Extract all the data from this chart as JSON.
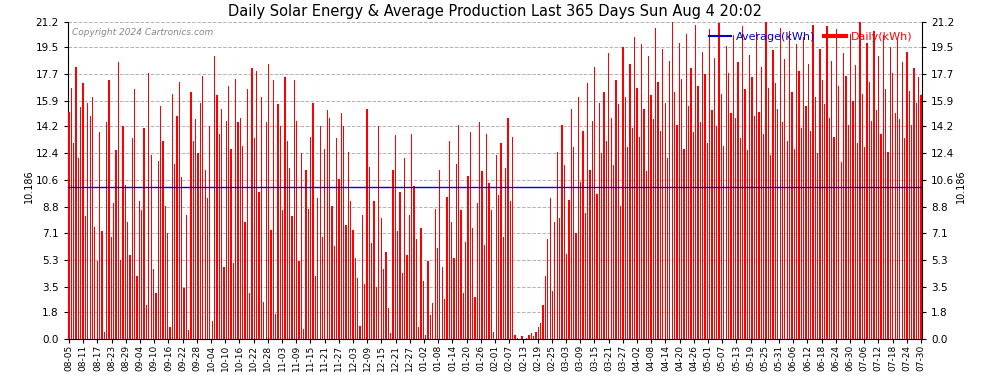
{
  "title": "Daily Solar Energy & Average Production Last 365 Days Sun Aug 4 20:02",
  "copyright": "Copyright 2024 Cartronics.com",
  "average_value": 10.186,
  "average_label": "10.186",
  "yticks": [
    0.0,
    1.8,
    3.5,
    5.3,
    7.1,
    8.8,
    10.6,
    12.4,
    14.2,
    15.9,
    17.7,
    19.5,
    21.2
  ],
  "ylim": [
    0.0,
    21.2
  ],
  "bar_color": "#ff0000",
  "average_line_color": "#0000cc",
  "grid_color": "#aaaaaa",
  "background_color": "#ffffff",
  "title_color": "#000000",
  "copyright_color": "#888888",
  "legend_avg_color": "#0000cc",
  "legend_daily_color": "#ff0000",
  "bar_width": 0.55,
  "xtick_labels": [
    "08-05",
    "08-11",
    "08-17",
    "08-23",
    "08-29",
    "09-04",
    "09-10",
    "09-16",
    "09-22",
    "09-28",
    "10-04",
    "10-10",
    "10-16",
    "10-22",
    "10-28",
    "11-03",
    "11-09",
    "11-15",
    "11-21",
    "11-27",
    "12-03",
    "12-09",
    "12-15",
    "12-21",
    "12-27",
    "01-02",
    "01-08",
    "01-14",
    "01-20",
    "01-26",
    "02-01",
    "02-07",
    "02-13",
    "02-19",
    "02-25",
    "03-03",
    "03-09",
    "03-15",
    "03-21",
    "03-27",
    "04-02",
    "04-08",
    "04-14",
    "04-20",
    "04-26",
    "05-01",
    "05-07",
    "05-13",
    "05-19",
    "05-25",
    "05-31",
    "06-06",
    "06-12",
    "06-18",
    "06-24",
    "06-30",
    "07-06",
    "07-12",
    "07-18",
    "07-24",
    "07-30"
  ],
  "values": [
    15.2,
    16.8,
    13.1,
    18.2,
    12.1,
    15.5,
    17.1,
    8.2,
    15.8,
    14.9,
    16.2,
    7.5,
    5.2,
    13.8,
    7.2,
    0.5,
    14.5,
    17.3,
    6.8,
    9.1,
    12.6,
    18.5,
    5.3,
    14.2,
    10.3,
    7.8,
    5.6,
    13.4,
    16.7,
    4.2,
    9.2,
    8.6,
    14.1,
    2.3,
    17.8,
    12.3,
    4.7,
    3.1,
    11.9,
    15.6,
    13.2,
    8.9,
    7.1,
    0.8,
    16.4,
    11.7,
    14.9,
    17.2,
    10.8,
    3.4,
    8.3,
    0.6,
    16.5,
    13.2,
    14.7,
    12.4,
    15.8,
    17.6,
    11.3,
    9.4,
    14.2,
    1.2,
    18.9,
    16.3,
    13.7,
    15.4,
    4.8,
    14.6,
    16.9,
    12.7,
    5.1,
    17.4,
    14.5,
    14.8,
    12.9,
    7.8,
    16.7,
    3.1,
    18.1,
    13.4,
    17.9,
    9.8,
    16.2,
    2.5,
    14.5,
    18.4,
    7.3,
    17.3,
    1.7,
    15.7,
    14.2,
    8.6,
    17.5,
    13.2,
    11.4,
    8.2,
    17.3,
    14.6,
    5.2,
    12.4,
    0.7,
    11.3,
    8.7,
    13.5,
    15.8,
    4.2,
    9.4,
    14.2,
    6.8,
    12.7,
    15.3,
    14.8,
    8.9,
    6.2,
    13.4,
    10.7,
    15.1,
    14.2,
    7.6,
    12.5,
    9.2,
    7.3,
    5.4,
    4.1,
    0.9,
    8.3,
    3.7,
    15.4,
    11.5,
    6.4,
    9.2,
    3.5,
    14.2,
    8.1,
    4.7,
    5.8,
    2.1,
    0.4,
    11.3,
    13.6,
    7.2,
    9.8,
    4.4,
    12.1,
    5.6,
    8.3,
    13.7,
    10.2,
    6.7,
    0.8,
    7.4,
    3.9,
    0.3,
    5.2,
    1.6,
    2.4,
    8.7,
    6.1,
    11.3,
    4.8,
    2.7,
    9.5,
    13.2,
    7.8,
    5.4,
    11.7,
    14.3,
    8.6,
    3.1,
    6.5,
    10.9,
    13.8,
    7.4,
    2.8,
    9.1,
    14.5,
    11.2,
    6.3,
    13.7,
    10.4,
    8.6,
    0.5,
    12.3,
    9.6,
    13.1,
    6.8,
    11.4,
    14.8,
    9.2,
    13.5,
    0.3,
    0.1,
    0.0,
    0.2,
    0.0,
    0.1,
    0.3,
    0.4,
    0.2,
    0.5,
    0.8,
    1.1,
    2.3,
    4.2,
    6.7,
    9.4,
    3.2,
    7.8,
    12.5,
    8.1,
    14.3,
    11.6,
    5.7,
    9.3,
    15.4,
    12.8,
    7.1,
    16.2,
    10.5,
    13.9,
    8.4,
    17.1,
    11.3,
    14.6,
    18.2,
    9.7,
    15.8,
    12.4,
    16.5,
    13.2,
    19.1,
    14.8,
    11.6,
    17.3,
    15.7,
    8.9,
    19.5,
    16.2,
    12.8,
    18.4,
    14.1,
    20.2,
    16.8,
    13.5,
    19.7,
    15.4,
    11.2,
    18.9,
    16.3,
    14.7,
    20.8,
    17.2,
    13.9,
    19.4,
    15.8,
    12.1,
    18.6,
    21.2,
    16.5,
    14.3,
    19.8,
    17.4,
    12.7,
    20.4,
    15.6,
    18.1,
    13.8,
    21.0,
    16.9,
    14.5,
    19.2,
    17.7,
    13.1,
    20.7,
    15.3,
    18.8,
    14.2,
    21.1,
    16.4,
    12.9,
    19.6,
    17.8,
    15.1,
    20.3,
    14.8,
    18.5,
    13.4,
    20.9,
    16.7,
    12.6,
    19.0,
    17.5,
    14.9,
    20.5,
    15.2,
    18.2,
    13.7,
    21.2,
    16.8,
    12.3,
    19.3,
    17.1,
    15.4,
    20.8,
    14.5,
    18.7,
    13.2,
    20.6,
    16.5,
    12.7,
    19.7,
    17.9,
    14.1,
    20.2,
    15.6,
    18.4,
    13.9,
    21.0,
    16.2,
    12.4,
    19.4,
    17.3,
    15.7,
    20.9,
    14.8,
    18.6,
    13.5,
    20.7,
    16.9,
    11.8,
    19.1,
    17.6,
    14.3,
    20.4,
    15.9,
    18.3,
    13.1,
    21.2,
    16.4,
    12.8,
    19.8,
    17.2,
    14.6,
    20.6,
    15.3,
    18.9,
    13.7,
    20.3,
    16.7,
    12.5,
    19.5,
    17.8,
    15.1,
    20.0,
    14.7,
    18.5,
    13.4,
    19.2,
    16.6,
    14.3,
    18.1,
    15.8,
    17.5,
    16.3
  ]
}
